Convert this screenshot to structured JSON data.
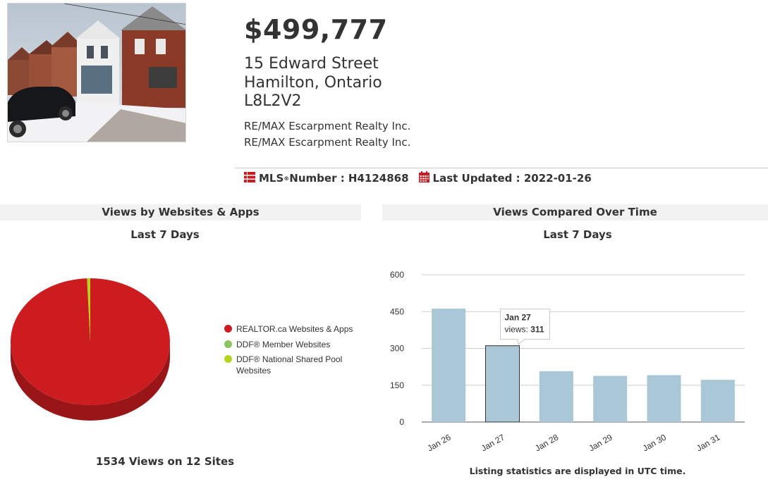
{
  "listing": {
    "price": "$499,777",
    "street": "15 Edward Street",
    "city": "Hamilton, Ontario",
    "postal": "L8L2V2",
    "brokers": [
      "RE/MAX Escarpment Realty Inc.",
      "RE/MAX Escarpment Realty Inc."
    ],
    "mls_label": "MLS",
    "mls_suffix": " Number : H4124868",
    "updated_label": "Last Updated : 2022-01-26"
  },
  "websites_panel": {
    "title": "Views by Websites & Apps",
    "subtitle": "Last 7 Days",
    "total_text": "1534 Views on 12 Sites"
  },
  "time_panel": {
    "title": "Views Compared Over Time",
    "subtitle": "Last 7 Days",
    "note": "Listing statistics are displayed in UTC time.",
    "tooltip": {
      "date": "Jan 27",
      "label": "views:",
      "value": "311"
    }
  },
  "chart_data": [
    {
      "type": "pie",
      "title": "",
      "series": [
        {
          "name": "REALTOR.ca Websites & Apps",
          "value": 1524,
          "color": "#cc1c1f"
        },
        {
          "name": "DDF® Member Websites",
          "value": 0,
          "color": "#8cc45e"
        },
        {
          "name": "DDF® National Shared Pool Websites",
          "value": 10,
          "color": "#b6d41e"
        }
      ],
      "legend_position": "right"
    },
    {
      "type": "bar",
      "title": "",
      "xlabel": "",
      "ylabel": "",
      "categories": [
        "Jan 26",
        "Jan 27",
        "Jan 28",
        "Jan 29",
        "Jan 30",
        "Jan 31"
      ],
      "series": [
        {
          "values": [
            462,
            311,
            207,
            188,
            191,
            172
          ],
          "color": "#a9c7d6"
        }
      ],
      "ylim": [
        0,
        600
      ],
      "yticks": [
        0,
        150,
        300,
        450,
        600
      ],
      "grid": true,
      "highlighted_category": "Jan 27"
    }
  ]
}
